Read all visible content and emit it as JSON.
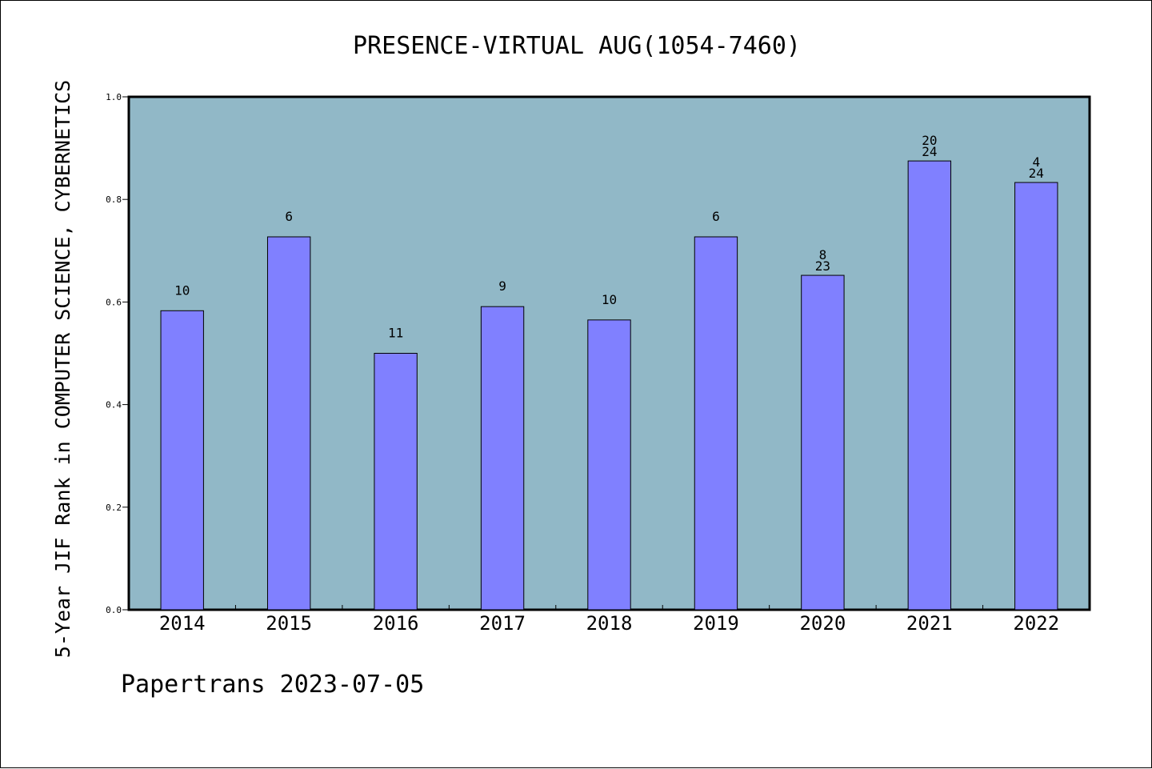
{
  "chart_data": {
    "type": "bar",
    "title": "PRESENCE-VIRTUAL AUG(1054-7460)",
    "ylabel": "5-Year JIF Rank in COMPUTER SCIENCE, CYBERNETICS",
    "xlabel": "",
    "footer": "Papertrans 2023-07-05",
    "categories": [
      "2014",
      "2015",
      "2016",
      "2017",
      "2018",
      "2019",
      "2020",
      "2021",
      "2022"
    ],
    "values": [
      0.583,
      0.727,
      0.5,
      0.591,
      0.565,
      0.727,
      0.652,
      0.875,
      0.833
    ],
    "bar_labels": [
      [
        "10"
      ],
      [
        "6"
      ],
      [
        "11"
      ],
      [
        "9"
      ],
      [
        "10"
      ],
      [
        "6"
      ],
      [
        "8",
        "23"
      ],
      [
        "20",
        "24"
      ],
      [
        "4",
        "24"
      ]
    ],
    "ylim": [
      0,
      1.0
    ],
    "yticks": [
      "0.0",
      "0.2",
      "0.4",
      "0.6",
      "0.8",
      "1.0"
    ],
    "grid": false,
    "colors": {
      "plot_background": "#91b8c7",
      "bar_fill": "#8080ff",
      "bar_stroke": "#000000"
    }
  }
}
